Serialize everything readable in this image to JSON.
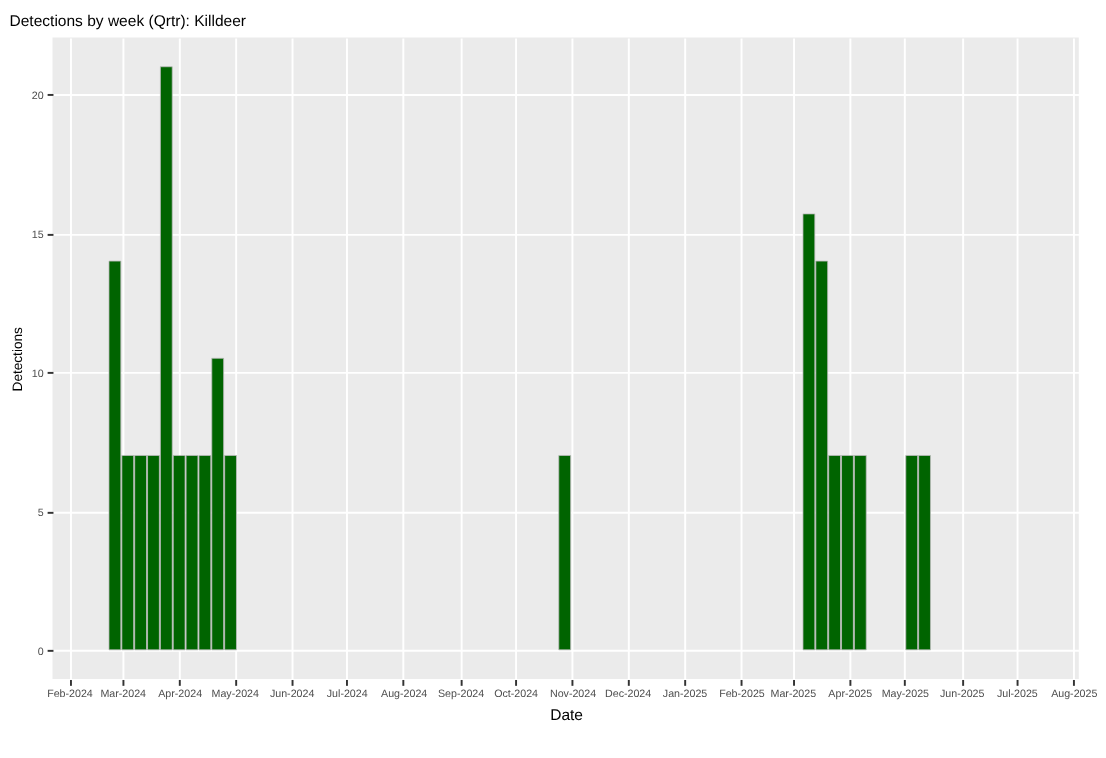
{
  "chart_data": {
    "type": "bar",
    "title": "Detections by week (Qrtr): Killdeer",
    "xlabel": "Date",
    "ylabel": "Detections",
    "x": [
      "2024-02-26",
      "2024-03-04",
      "2024-03-11",
      "2024-03-18",
      "2024-03-25",
      "2024-04-01",
      "2024-04-08",
      "2024-04-15",
      "2024-04-22",
      "2024-04-29",
      "2024-10-28",
      "2025-03-10",
      "2025-03-17",
      "2025-03-24",
      "2025-03-31",
      "2025-04-07",
      "2025-05-05",
      "2025-05-12"
    ],
    "values": [
      14,
      7,
      7,
      7,
      21,
      7,
      7,
      7,
      10.5,
      7,
      7,
      15.7,
      14,
      7,
      7,
      7,
      7,
      7
    ],
    "color": "#006400",
    "xlim": [
      "2024-01-23",
      "2025-08-04"
    ],
    "xticks": [
      {
        "value": "2024-02-01",
        "label": "Feb-2024"
      },
      {
        "value": "2024-03-01",
        "label": "Mar-2024"
      },
      {
        "value": "2024-04-01",
        "label": "Apr-2024"
      },
      {
        "value": "2024-05-01",
        "label": "May-2024"
      },
      {
        "value": "2024-06-01",
        "label": "Jun-2024"
      },
      {
        "value": "2024-07-01",
        "label": "Jul-2024"
      },
      {
        "value": "2024-08-01",
        "label": "Aug-2024"
      },
      {
        "value": "2024-09-01",
        "label": "Sep-2024"
      },
      {
        "value": "2024-10-01",
        "label": "Oct-2024"
      },
      {
        "value": "2024-11-01",
        "label": "Nov-2024"
      },
      {
        "value": "2024-12-01",
        "label": "Dec-2024"
      },
      {
        "value": "2025-01-01",
        "label": "Jan-2025"
      },
      {
        "value": "2025-02-01",
        "label": "Feb-2025"
      },
      {
        "value": "2025-03-01",
        "label": "Mar-2025"
      },
      {
        "value": "2025-04-01",
        "label": "Apr-2025"
      },
      {
        "value": "2025-05-01",
        "label": "May-2025"
      },
      {
        "value": "2025-06-01",
        "label": "Jun-2025"
      },
      {
        "value": "2025-07-01",
        "label": "Jul-2025"
      },
      {
        "value": "2025-08-01",
        "label": "Aug-2025"
      }
    ],
    "ylim": [
      -1.05,
      22.05
    ],
    "yticks": [
      0,
      5,
      10,
      15,
      20
    ],
    "grid": true
  }
}
